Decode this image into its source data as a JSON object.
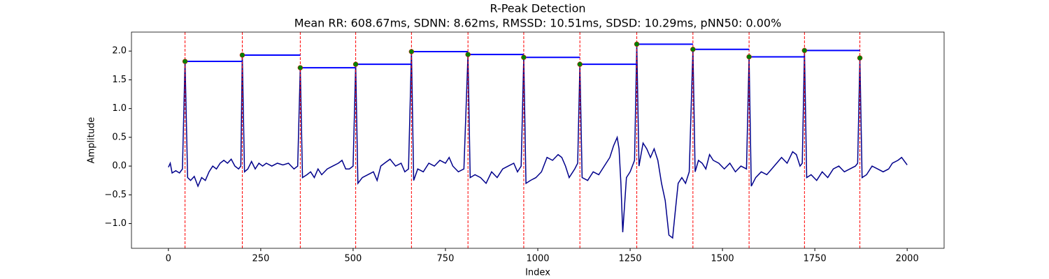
{
  "chart_data": {
    "type": "line",
    "title": "R-Peak Detection",
    "subtitle": "Mean RR: 608.67ms, SDNN: 8.62ms, RMSSD: 10.51ms, SDSD: 10.29ms, pNN50: 0.00%",
    "x_label": "Index",
    "y_label": "Amplitude",
    "xlim": [
      -100,
      2100
    ],
    "ylim": [
      -1.43,
      2.33
    ],
    "xticks": [
      0,
      250,
      500,
      750,
      1000,
      1250,
      1500,
      1750,
      2000
    ],
    "yticks": [
      {
        "value": -1.0,
        "label": "−1.0"
      },
      {
        "value": -0.5,
        "label": "−0.5"
      },
      {
        "value": 0.0,
        "label": "0.0"
      },
      {
        "value": 0.5,
        "label": "0.5"
      },
      {
        "value": 1.0,
        "label": "1.0"
      },
      {
        "value": 1.5,
        "label": "1.5"
      },
      {
        "value": 2.0,
        "label": "2.0"
      }
    ],
    "signal": {
      "color": "#00008b",
      "x": [
        0,
        5,
        10,
        20,
        30,
        38,
        45,
        52,
        60,
        70,
        80,
        90,
        100,
        110,
        120,
        130,
        140,
        150,
        160,
        170,
        180,
        190,
        196,
        200,
        206,
        215,
        225,
        235,
        245,
        255,
        265,
        280,
        295,
        310,
        325,
        340,
        350,
        357,
        363,
        375,
        385,
        395,
        405,
        415,
        430,
        445,
        460,
        470,
        480,
        490,
        500,
        507,
        513,
        525,
        540,
        555,
        565,
        575,
        585,
        600,
        615,
        630,
        640,
        650,
        658,
        664,
        675,
        690,
        705,
        720,
        735,
        750,
        760,
        770,
        785,
        800,
        811,
        817,
        830,
        845,
        860,
        875,
        890,
        905,
        920,
        935,
        945,
        955,
        962,
        968,
        980,
        995,
        1010,
        1025,
        1040,
        1055,
        1065,
        1075,
        1085,
        1100,
        1108,
        1114,
        1120,
        1135,
        1150,
        1165,
        1180,
        1195,
        1205,
        1215,
        1220,
        1225,
        1230,
        1240,
        1250,
        1262,
        1268,
        1274,
        1285,
        1295,
        1305,
        1315,
        1325,
        1335,
        1345,
        1355,
        1365,
        1372,
        1380,
        1390,
        1400,
        1410,
        1420,
        1426,
        1435,
        1445,
        1455,
        1465,
        1475,
        1490,
        1505,
        1520,
        1535,
        1550,
        1565,
        1572,
        1578,
        1590,
        1605,
        1620,
        1640,
        1660,
        1675,
        1690,
        1700,
        1710,
        1716,
        1722,
        1728,
        1740,
        1755,
        1770,
        1785,
        1800,
        1815,
        1830,
        1845,
        1860,
        1866,
        1872,
        1878,
        1890,
        1905,
        1920,
        1935,
        1950,
        1960,
        1975,
        1985,
        2000
      ],
      "values": [
        -0.02,
        0.05,
        -0.12,
        -0.08,
        -0.12,
        -0.05,
        1.82,
        -0.2,
        -0.25,
        -0.18,
        -0.35,
        -0.2,
        -0.25,
        -0.1,
        0.0,
        -0.05,
        0.05,
        0.1,
        0.05,
        0.12,
        0.0,
        -0.05,
        0.0,
        1.93,
        -0.1,
        -0.05,
        0.08,
        -0.05,
        0.05,
        0.0,
        0.05,
        0.0,
        0.05,
        0.02,
        0.05,
        -0.05,
        0.0,
        1.71,
        -0.2,
        -0.15,
        -0.1,
        -0.2,
        -0.05,
        -0.15,
        -0.05,
        0.0,
        0.05,
        0.1,
        -0.05,
        -0.05,
        0.0,
        1.77,
        -0.3,
        -0.2,
        -0.15,
        -0.1,
        -0.25,
        0.0,
        0.05,
        0.12,
        0.0,
        0.05,
        -0.1,
        -0.05,
        1.99,
        -0.25,
        -0.05,
        -0.1,
        0.05,
        0.0,
        0.1,
        0.05,
        0.15,
        0.0,
        -0.1,
        -0.05,
        1.94,
        -0.2,
        -0.15,
        -0.2,
        -0.3,
        -0.1,
        -0.2,
        -0.05,
        0.0,
        0.05,
        -0.1,
        0.0,
        1.89,
        -0.3,
        -0.25,
        -0.2,
        -0.1,
        0.15,
        0.1,
        0.2,
        0.15,
        0.0,
        -0.2,
        -0.05,
        0.05,
        1.77,
        -0.2,
        -0.25,
        -0.1,
        -0.15,
        0.0,
        0.15,
        0.35,
        0.5,
        0.3,
        -0.3,
        -1.15,
        -0.2,
        -0.1,
        0.1,
        2.12,
        0.0,
        0.4,
        0.3,
        0.15,
        0.3,
        0.1,
        -0.3,
        -0.6,
        -1.2,
        -1.25,
        -0.8,
        -0.3,
        -0.2,
        -0.3,
        -0.1,
        2.03,
        -0.1,
        0.1,
        0.05,
        -0.05,
        0.2,
        0.1,
        0.05,
        -0.05,
        0.05,
        -0.1,
        0.0,
        -0.05,
        1.9,
        -0.35,
        -0.2,
        -0.1,
        -0.15,
        0.0,
        0.15,
        0.05,
        0.25,
        0.2,
        0.0,
        0.05,
        2.01,
        -0.2,
        -0.15,
        -0.25,
        -0.1,
        -0.2,
        -0.05,
        0.0,
        -0.1,
        -0.05,
        0.0,
        0.05,
        1.88,
        -0.2,
        -0.15,
        0.0,
        -0.05,
        -0.1,
        -0.05,
        0.05,
        0.1,
        0.15,
        0.02
      ]
    },
    "peaks": {
      "color": "#008000",
      "edge_color": "#ff0000",
      "rr_color": "#0000ff",
      "x": [
        45,
        200,
        357,
        507,
        658,
        811,
        962,
        1114,
        1268,
        1420,
        1572,
        1722,
        1872
      ],
      "values": [
        1.82,
        1.93,
        1.71,
        1.77,
        1.99,
        1.94,
        1.89,
        1.77,
        2.12,
        2.03,
        1.9,
        2.01,
        1.88
      ]
    }
  }
}
